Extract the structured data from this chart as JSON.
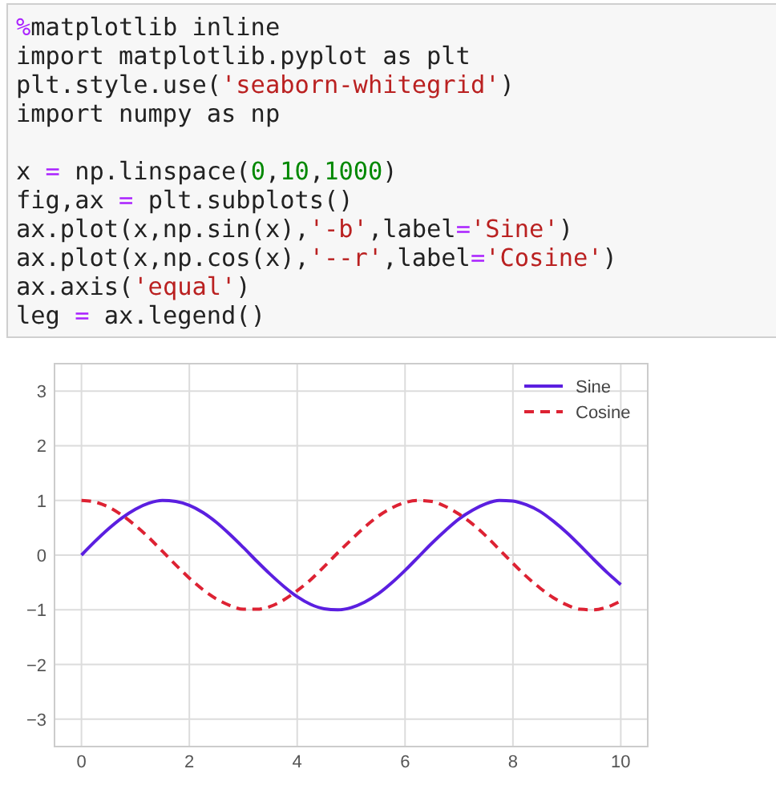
{
  "chart_data": {
    "type": "line",
    "annotations": [
      "%matplotlib inline\nimport matplotlib.pyplot as plt\nplt.style.use('seaborn-whitegrid')\nimport numpy as np\n\nx = np.linspace(0,10,1000)\nfig,ax = plt.subplots()\nax.plot(x,np.sin(x),'-b',label='Sine')\nax.plot(x,np.cos(x),'--r',label='Cosine')\nax.axis('equal')\nleg = ax.legend()"
    ],
    "x": [
      0,
      0.25,
      0.5,
      0.75,
      1,
      1.25,
      1.5,
      1.75,
      2,
      2.25,
      2.5,
      2.75,
      3,
      3.25,
      3.5,
      3.75,
      4,
      4.25,
      4.5,
      4.75,
      5,
      5.25,
      5.5,
      5.75,
      6,
      6.25,
      6.5,
      6.75,
      7,
      7.25,
      7.5,
      7.75,
      8,
      8.25,
      8.5,
      8.75,
      9,
      9.25,
      9.5,
      9.75,
      10
    ],
    "series": [
      {
        "name": "Sine",
        "color": "#5b1fe0",
        "line_style": "solid",
        "values": [
          0,
          0.25,
          0.48,
          0.68,
          0.84,
          0.95,
          1.0,
          0.98,
          0.91,
          0.78,
          0.6,
          0.38,
          0.14,
          -0.11,
          -0.35,
          -0.57,
          -0.76,
          -0.9,
          -0.98,
          -1.0,
          -0.96,
          -0.86,
          -0.71,
          -0.51,
          -0.28,
          -0.03,
          0.22,
          0.45,
          0.66,
          0.82,
          0.94,
          1.0,
          0.99,
          0.92,
          0.8,
          0.62,
          0.41,
          0.17,
          -0.08,
          -0.32,
          -0.54
        ]
      },
      {
        "name": "Cosine",
        "color": "#dd2233",
        "line_style": "dashed",
        "values": [
          1.0,
          0.97,
          0.88,
          0.73,
          0.54,
          0.32,
          0.07,
          -0.18,
          -0.42,
          -0.63,
          -0.8,
          -0.92,
          -0.99,
          -0.99,
          -0.94,
          -0.82,
          -0.65,
          -0.45,
          -0.21,
          0.04,
          0.28,
          0.51,
          0.71,
          0.86,
          0.96,
          1.0,
          0.98,
          0.89,
          0.75,
          0.57,
          0.35,
          0.1,
          -0.15,
          -0.39,
          -0.6,
          -0.78,
          -0.91,
          -0.99,
          -1.0,
          -0.95,
          -0.84
        ]
      }
    ],
    "xlim": [
      -0.5,
      10.5
    ],
    "ylim": [
      -3.5,
      3.5
    ],
    "xticks": [
      0,
      2,
      4,
      6,
      8,
      10
    ],
    "yticks": [
      -3,
      -2,
      -1,
      0,
      1,
      2,
      3
    ],
    "grid": true,
    "legend": "top right"
  }
}
